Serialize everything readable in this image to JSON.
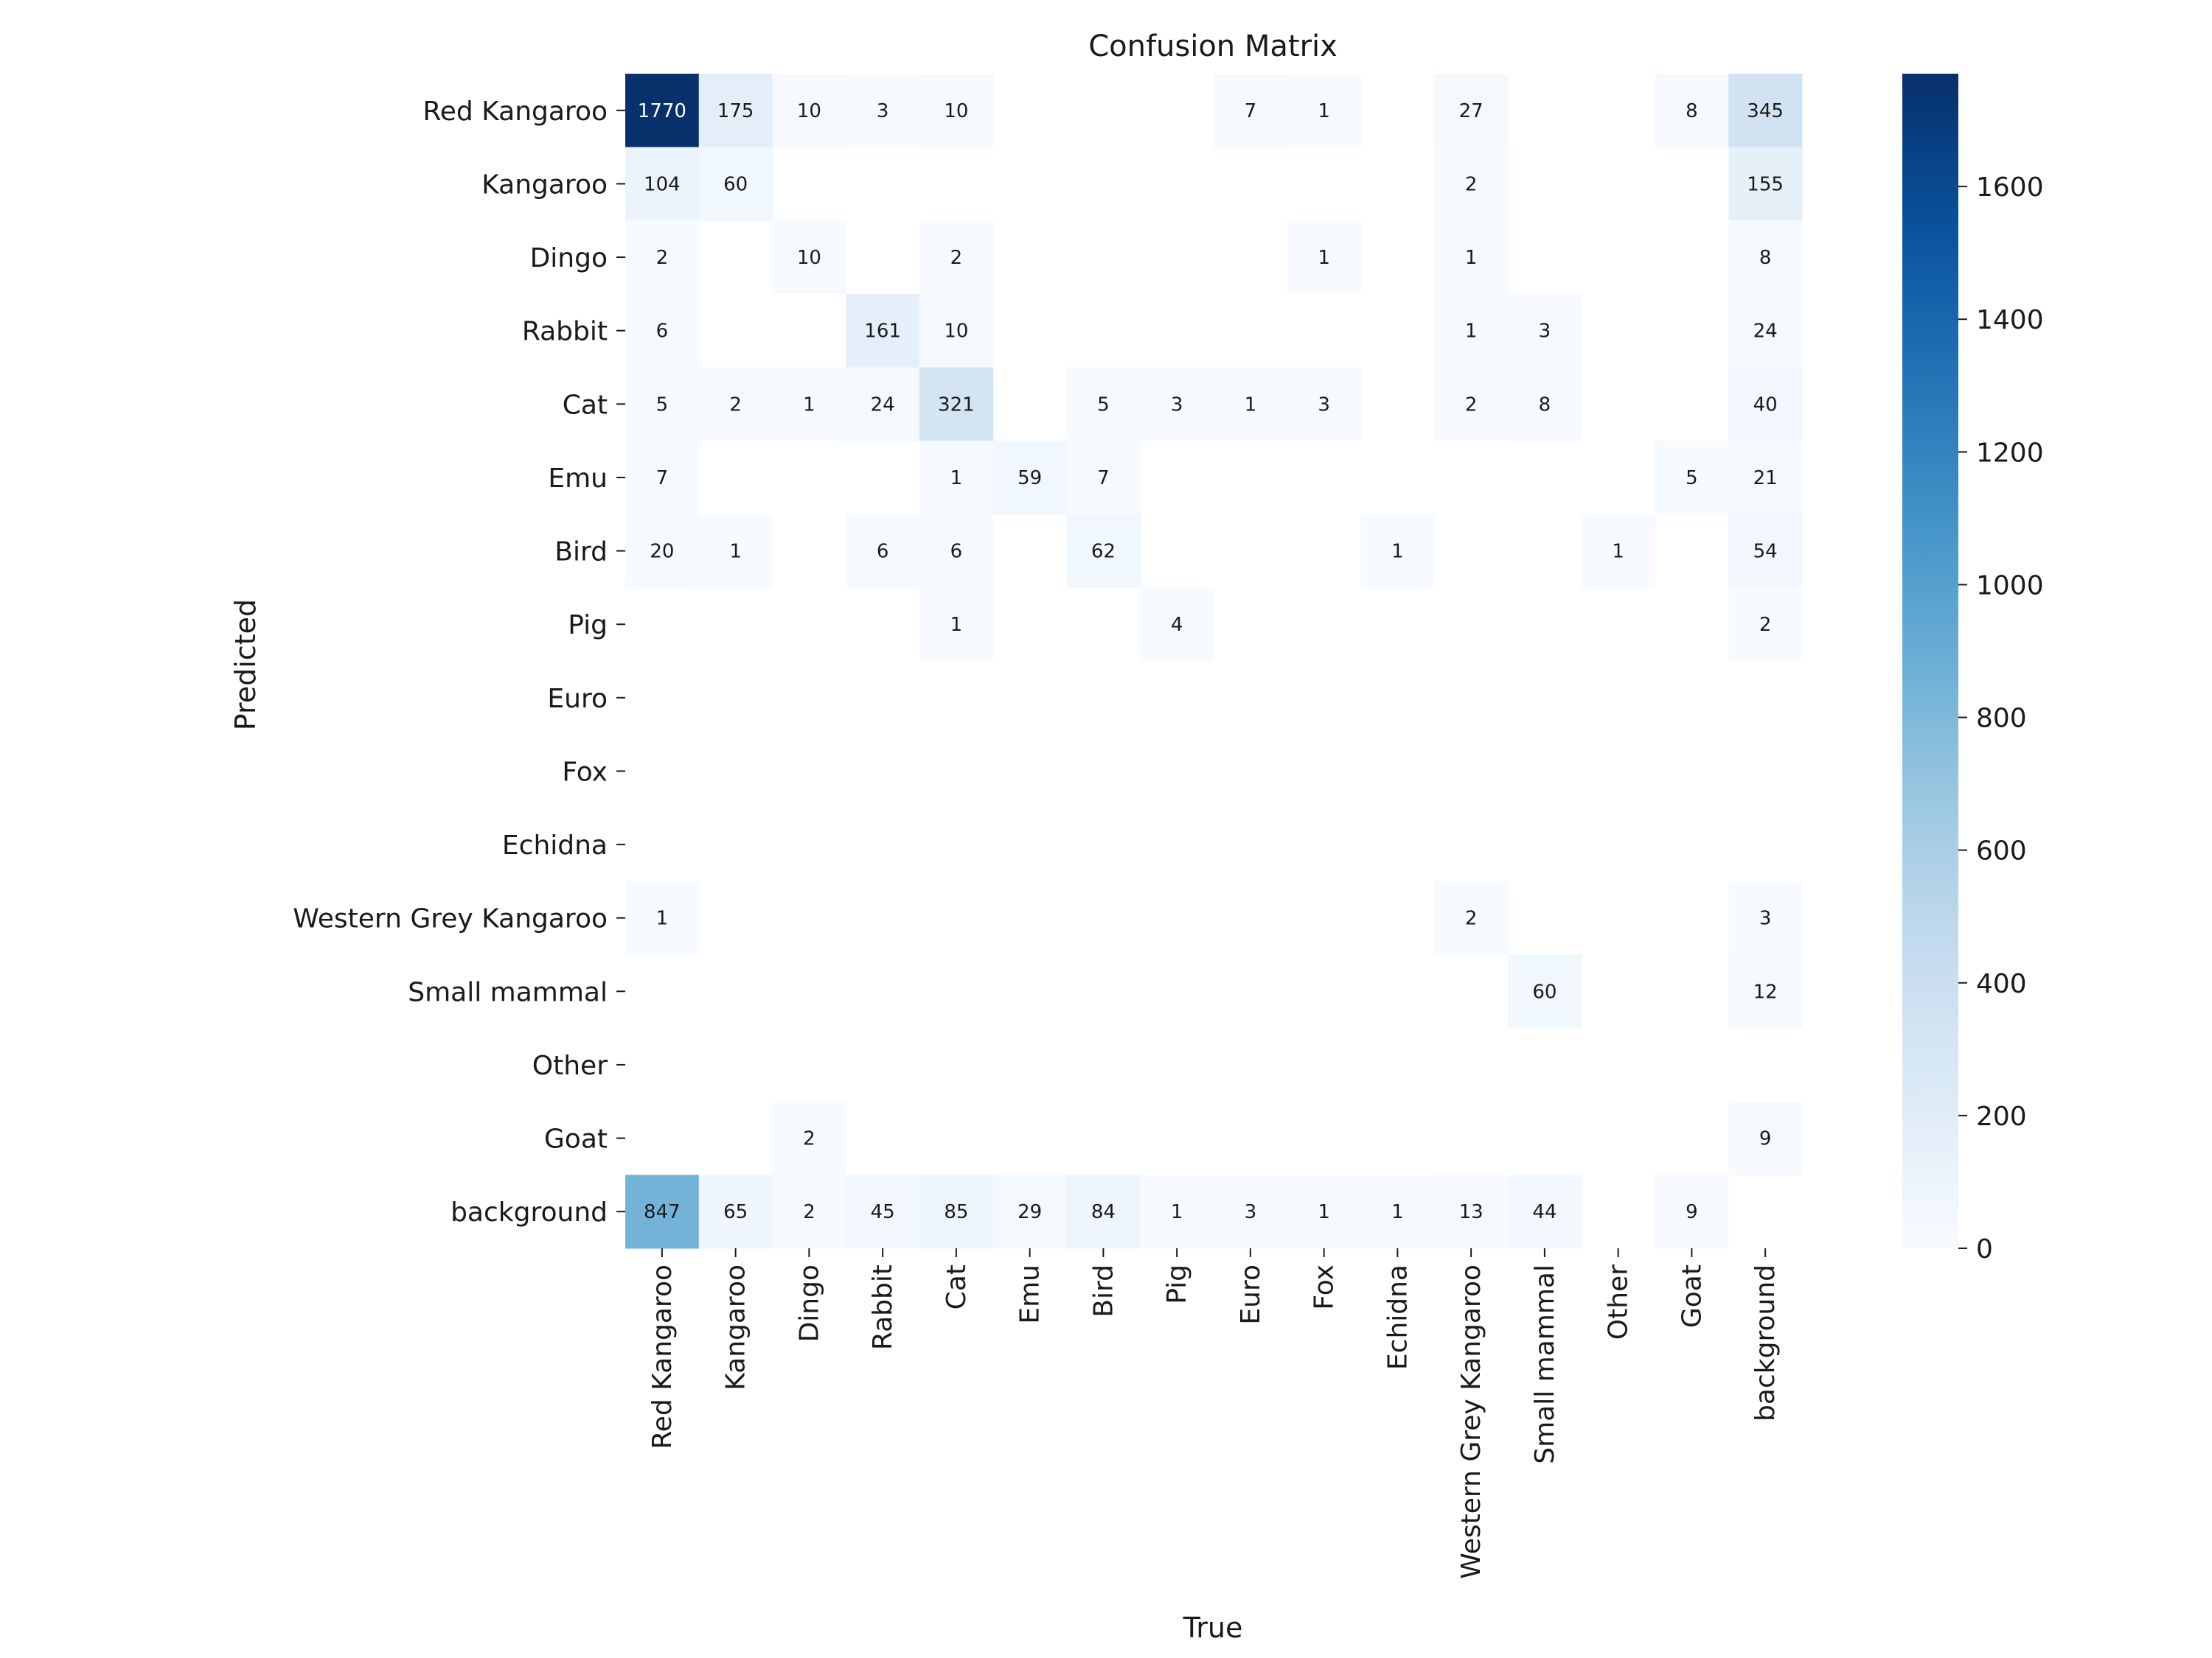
{
  "chart_data": {
    "type": "heatmap",
    "title": "Confusion Matrix",
    "xlabel": "True",
    "ylabel": "Predicted",
    "x_categories": [
      "Red Kangaroo",
      "Kangaroo",
      "Dingo",
      "Rabbit",
      "Cat",
      "Emu",
      "Bird",
      "Pig",
      "Euro",
      "Fox",
      "Echidna",
      "Western Grey Kangaroo",
      "Small mammal",
      "Other",
      "Goat",
      "background"
    ],
    "y_categories": [
      "Red Kangaroo",
      "Kangaroo",
      "Dingo",
      "Rabbit",
      "Cat",
      "Emu",
      "Bird",
      "Pig",
      "Euro",
      "Fox",
      "Echidna",
      "Western Grey Kangaroo",
      "Small mammal",
      "Other",
      "Goat",
      "background"
    ],
    "values": [
      [
        1770,
        175,
        10,
        3,
        10,
        null,
        null,
        null,
        7,
        1,
        null,
        27,
        null,
        null,
        8,
        345
      ],
      [
        104,
        60,
        null,
        null,
        null,
        null,
        null,
        null,
        null,
        null,
        null,
        2,
        null,
        null,
        null,
        155
      ],
      [
        2,
        null,
        10,
        null,
        2,
        null,
        null,
        null,
        null,
        1,
        null,
        1,
        null,
        null,
        null,
        8
      ],
      [
        6,
        null,
        null,
        161,
        10,
        null,
        null,
        null,
        null,
        null,
        null,
        1,
        3,
        null,
        null,
        24
      ],
      [
        5,
        2,
        1,
        24,
        321,
        null,
        5,
        3,
        1,
        3,
        null,
        2,
        8,
        null,
        null,
        40
      ],
      [
        7,
        null,
        null,
        null,
        1,
        59,
        7,
        null,
        null,
        null,
        null,
        null,
        null,
        null,
        5,
        21
      ],
      [
        20,
        1,
        null,
        6,
        6,
        null,
        62,
        null,
        null,
        null,
        1,
        null,
        null,
        1,
        null,
        54
      ],
      [
        null,
        null,
        null,
        null,
        1,
        null,
        null,
        4,
        null,
        null,
        null,
        null,
        null,
        null,
        null,
        2
      ],
      [
        null,
        null,
        null,
        null,
        null,
        null,
        null,
        null,
        null,
        null,
        null,
        null,
        null,
        null,
        null,
        null
      ],
      [
        null,
        null,
        null,
        null,
        null,
        null,
        null,
        null,
        null,
        null,
        null,
        null,
        null,
        null,
        null,
        null
      ],
      [
        null,
        null,
        null,
        null,
        null,
        null,
        null,
        null,
        null,
        null,
        null,
        null,
        null,
        null,
        null,
        null
      ],
      [
        1,
        null,
        null,
        null,
        null,
        null,
        null,
        null,
        null,
        null,
        null,
        2,
        null,
        null,
        null,
        3
      ],
      [
        null,
        null,
        null,
        null,
        null,
        null,
        null,
        null,
        null,
        null,
        null,
        null,
        60,
        null,
        null,
        12
      ],
      [
        null,
        null,
        null,
        null,
        null,
        null,
        null,
        null,
        null,
        null,
        null,
        null,
        null,
        null,
        null,
        null
      ],
      [
        null,
        null,
        2,
        null,
        null,
        null,
        null,
        null,
        null,
        null,
        null,
        null,
        null,
        null,
        null,
        9
      ],
      [
        847,
        65,
        2,
        45,
        85,
        29,
        84,
        1,
        3,
        1,
        1,
        13,
        44,
        null,
        9,
        null
      ]
    ],
    "colorbar": {
      "min": 0,
      "max": 1770,
      "ticks": [
        0,
        200,
        400,
        600,
        800,
        1000,
        1200,
        1400,
        1600
      ],
      "colormap": "Blues",
      "colors": [
        "#f7fbff",
        "#deebf7",
        "#c6dbef",
        "#9ecae1",
        "#6baed6",
        "#4292c6",
        "#2171b5",
        "#08519c",
        "#08306b"
      ]
    }
  }
}
